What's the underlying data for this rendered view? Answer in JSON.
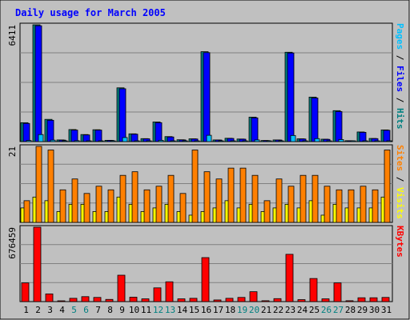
{
  "chart_data": [
    {
      "type": "bar",
      "title": "Daily usage for March 2005",
      "panel": "hits-files-pages",
      "ymax_label": "6411",
      "right_label": [
        {
          "text": "Pages",
          "color": "#00c0ff"
        },
        {
          "text": " / ",
          "color": "#000000"
        },
        {
          "text": "Files",
          "color": "#0000ff"
        },
        {
          "text": " / ",
          "color": "#000000"
        },
        {
          "text": "Hits",
          "color": "#008080"
        }
      ],
      "categories": [
        "1",
        "2",
        "3",
        "4",
        "5",
        "6",
        "7",
        "8",
        "9",
        "10",
        "11",
        "12",
        "13",
        "14",
        "15",
        "16",
        "17",
        "18",
        "19",
        "20",
        "21",
        "22",
        "23",
        "24",
        "25",
        "26",
        "27",
        "28",
        "29",
        "30",
        "31"
      ],
      "series": [
        {
          "name": "Hits",
          "color": "#008080",
          "values": [
            1020,
            6300,
            1200,
            90,
            650,
            380,
            640,
            70,
            2900,
            420,
            160,
            1060,
            270,
            100,
            150,
            4850,
            90,
            180,
            140,
            1320,
            60,
            90,
            4820,
            150,
            2400,
            130,
            1670,
            50,
            520,
            170,
            630
          ]
        },
        {
          "name": "Files",
          "color": "#0000ff",
          "values": [
            980,
            6250,
            1150,
            80,
            620,
            360,
            620,
            65,
            2850,
            400,
            150,
            1020,
            250,
            90,
            140,
            4800,
            85,
            170,
            130,
            1280,
            55,
            85,
            4780,
            140,
            2350,
            120,
            1620,
            45,
            500,
            160,
            610
          ]
        },
        {
          "name": "Pages",
          "color": "#00c0ff",
          "values": [
            60,
            380,
            80,
            10,
            50,
            30,
            40,
            5,
            220,
            30,
            10,
            70,
            20,
            8,
            10,
            340,
            5,
            12,
            10,
            90,
            5,
            6,
            330,
            10,
            160,
            10,
            110,
            3,
            30,
            10,
            40
          ]
        }
      ]
    },
    {
      "type": "bar",
      "panel": "visits-sites",
      "ymax_label": "21",
      "right_label": [
        {
          "text": "Sites",
          "color": "#ff8000"
        },
        {
          "text": " / ",
          "color": "#000000"
        },
        {
          "text": "Visits",
          "color": "#ffff00"
        }
      ],
      "categories": [
        "1",
        "2",
        "3",
        "4",
        "5",
        "6",
        "7",
        "8",
        "9",
        "10",
        "11",
        "12",
        "13",
        "14",
        "15",
        "16",
        "17",
        "18",
        "19",
        "20",
        "21",
        "22",
        "23",
        "24",
        "25",
        "26",
        "27",
        "28",
        "29",
        "30",
        "31"
      ],
      "series": [
        {
          "name": "Visits",
          "color": "#ffff00",
          "values": [
            4,
            7,
            6,
            3,
            5,
            5,
            3,
            3,
            7,
            5,
            3,
            4,
            5,
            3,
            2,
            3,
            4,
            6,
            4,
            5,
            3,
            4,
            5,
            4,
            6,
            2,
            5,
            4,
            4,
            4,
            7
          ]
        },
        {
          "name": "Sites",
          "color": "#ff8000",
          "values": [
            6,
            21,
            20,
            9,
            12,
            8,
            10,
            9,
            13,
            14,
            9,
            10,
            13,
            8,
            20,
            14,
            12,
            15,
            15,
            13,
            6,
            12,
            10,
            13,
            13,
            10,
            9,
            9,
            10,
            9,
            20
          ]
        }
      ]
    },
    {
      "type": "bar",
      "panel": "kbytes",
      "ymax_label": "676459",
      "right_label": [
        {
          "text": "KBytes",
          "color": "#ff0000"
        }
      ],
      "categories": [
        "1",
        "2",
        "3",
        "4",
        "5",
        "6",
        "7",
        "8",
        "9",
        "10",
        "11",
        "12",
        "13",
        "14",
        "15",
        "16",
        "17",
        "18",
        "19",
        "20",
        "21",
        "22",
        "23",
        "24",
        "25",
        "26",
        "27",
        "28",
        "29",
        "30",
        "31"
      ],
      "series": [
        {
          "name": "KBytes",
          "color": "#ff0000",
          "values": [
            170000,
            676459,
            70000,
            7000,
            30000,
            45000,
            38000,
            20000,
            240000,
            40000,
            25000,
            125000,
            180000,
            25000,
            30000,
            400000,
            15000,
            30000,
            38000,
            90000,
            8000,
            27000,
            430000,
            18000,
            210000,
            25000,
            170000,
            8000,
            35000,
            35000,
            38000
          ]
        }
      ]
    }
  ],
  "x_labels": [
    {
      "text": "1",
      "color": "#000000"
    },
    {
      "text": "2",
      "color": "#000000"
    },
    {
      "text": "3",
      "color": "#000000"
    },
    {
      "text": "4",
      "color": "#000000"
    },
    {
      "text": "5",
      "color": "#008080"
    },
    {
      "text": "6",
      "color": "#008080"
    },
    {
      "text": "7",
      "color": "#000000"
    },
    {
      "text": "8",
      "color": "#000000"
    },
    {
      "text": "9",
      "color": "#000000"
    },
    {
      "text": "10",
      "color": "#000000"
    },
    {
      "text": "11",
      "color": "#000000"
    },
    {
      "text": "12",
      "color": "#008080"
    },
    {
      "text": "13",
      "color": "#008080"
    },
    {
      "text": "14",
      "color": "#000000"
    },
    {
      "text": "15",
      "color": "#000000"
    },
    {
      "text": "16",
      "color": "#000000"
    },
    {
      "text": "17",
      "color": "#000000"
    },
    {
      "text": "18",
      "color": "#000000"
    },
    {
      "text": "19",
      "color": "#008080"
    },
    {
      "text": "20",
      "color": "#008080"
    },
    {
      "text": "21",
      "color": "#000000"
    },
    {
      "text": "22",
      "color": "#000000"
    },
    {
      "text": "23",
      "color": "#000000"
    },
    {
      "text": "24",
      "color": "#000000"
    },
    {
      "text": "25",
      "color": "#000000"
    },
    {
      "text": "26",
      "color": "#008080"
    },
    {
      "text": "27",
      "color": "#008080"
    },
    {
      "text": "28",
      "color": "#000000"
    },
    {
      "text": "29",
      "color": "#000000"
    },
    {
      "text": "30",
      "color": "#000000"
    },
    {
      "text": "31",
      "color": "#000000"
    }
  ],
  "colors": {
    "background": "#c0c0c0",
    "plot_background": "#c0c0c0",
    "title": "#0000ff",
    "grid": "#808080"
  }
}
